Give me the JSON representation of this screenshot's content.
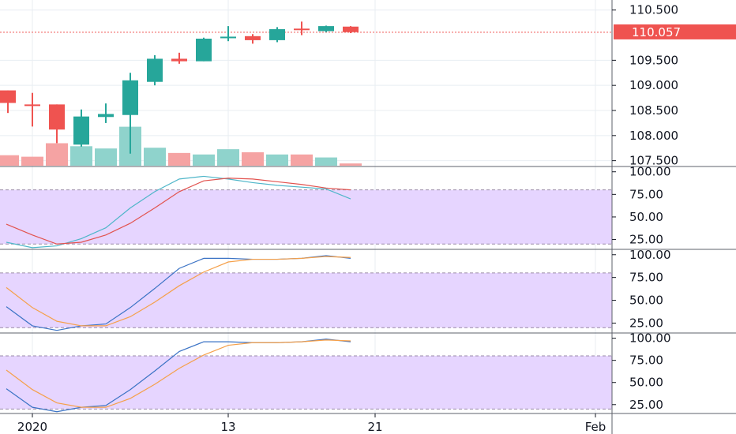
{
  "colors": {
    "up": "#26a69a",
    "down": "#ef5350",
    "vol_up": "#8fd3cc",
    "vol_down": "#f5a3a3",
    "band_fill": "#e6d5ff",
    "band_line": "#9a8aa8",
    "grid": "#e8eef2",
    "divider": "#5d606b",
    "line_k": "#3b73c5",
    "line_d": "#f5a04a",
    "line_k_cyan": "#4fb6c9",
    "line_d_red": "#e2534f",
    "price_line": "#ef5350"
  },
  "last_price": {
    "value": 110.057,
    "label": "110.057"
  },
  "x_axis": {
    "labels": [
      {
        "index": 1,
        "text": "2020"
      },
      {
        "index": 9,
        "text": "13"
      },
      {
        "index": 15,
        "text": "21"
      },
      {
        "index": 24,
        "text": "Feb"
      }
    ]
  },
  "chart_data": [
    {
      "type": "candlestick",
      "ylim": [
        107.4,
        110.7
      ],
      "y_ticks": [
        "107.500",
        "108.000",
        "108.500",
        "109.000",
        "109.500",
        "110.500"
      ],
      "y_tick_values": [
        107.5,
        108.0,
        108.5,
        109.0,
        109.5,
        110.5
      ],
      "candles": [
        {
          "open": 108.9,
          "high": 108.9,
          "low": 108.45,
          "close": 108.65
        },
        {
          "open": 108.62,
          "high": 108.85,
          "low": 108.18,
          "close": 108.6
        },
        {
          "open": 108.62,
          "high": 108.62,
          "low": 107.85,
          "close": 108.12
        },
        {
          "open": 107.82,
          "high": 108.52,
          "low": 107.78,
          "close": 108.38
        },
        {
          "open": 108.37,
          "high": 108.64,
          "low": 108.25,
          "close": 108.43
        },
        {
          "open": 108.41,
          "high": 109.25,
          "low": 107.64,
          "close": 109.1
        },
        {
          "open": 109.07,
          "high": 109.6,
          "low": 109.0,
          "close": 109.53
        },
        {
          "open": 109.53,
          "high": 109.65,
          "low": 109.43,
          "close": 109.48
        },
        {
          "open": 109.48,
          "high": 109.95,
          "low": 109.48,
          "close": 109.93
        },
        {
          "open": 109.96,
          "high": 110.18,
          "low": 109.88,
          "close": 109.97
        },
        {
          "open": 109.98,
          "high": 110.02,
          "low": 109.83,
          "close": 109.9
        },
        {
          "open": 109.9,
          "high": 110.16,
          "low": 109.86,
          "close": 110.12
        },
        {
          "open": 110.13,
          "high": 110.27,
          "low": 110.0,
          "close": 110.11
        },
        {
          "open": 110.08,
          "high": 110.19,
          "low": 110.06,
          "close": 110.18
        },
        {
          "open": 110.17,
          "high": 110.18,
          "low": 110.04,
          "close": 110.06
        }
      ],
      "volume": [
        14,
        12,
        30,
        26,
        23,
        52,
        24,
        17,
        15,
        22,
        18,
        15,
        15,
        11,
        3
      ]
    },
    {
      "type": "line",
      "ylim": [
        15,
        105
      ],
      "y_ticks": [
        "25.00",
        "50.00",
        "75.00",
        "100.00"
      ],
      "y_tick_values": [
        25,
        50,
        75,
        100
      ],
      "band": [
        20,
        80
      ],
      "series": [
        {
          "color_key": "line_k_cyan",
          "values": [
            22,
            16,
            18,
            26,
            38,
            60,
            78,
            92,
            95,
            92,
            88,
            85,
            83,
            81,
            70
          ]
        },
        {
          "color_key": "line_d_red",
          "values": [
            42,
            30,
            20,
            22,
            30,
            43,
            60,
            78,
            90,
            93,
            92,
            89,
            86,
            82,
            80
          ]
        }
      ]
    },
    {
      "type": "line",
      "ylim": [
        15,
        105
      ],
      "y_ticks": [
        "25.00",
        "50.00",
        "75.00",
        "100.00"
      ],
      "y_tick_values": [
        25,
        50,
        75,
        100
      ],
      "band": [
        20,
        80
      ],
      "series": [
        {
          "color_key": "line_k",
          "values": [
            43,
            22,
            17,
            22,
            24,
            42,
            63,
            85,
            96,
            96,
            95,
            95,
            96,
            99,
            96
          ]
        },
        {
          "color_key": "line_d",
          "values": [
            64,
            42,
            27,
            22,
            22,
            32,
            48,
            66,
            81,
            92,
            95,
            95,
            96,
            98,
            97
          ]
        }
      ]
    },
    {
      "type": "line",
      "ylim": [
        15,
        105
      ],
      "y_ticks": [
        "25.00",
        "50.00",
        "75.00",
        "100.00"
      ],
      "y_tick_values": [
        25,
        50,
        75,
        100
      ],
      "band": [
        20,
        80
      ],
      "series": [
        {
          "color_key": "line_k",
          "values": [
            43,
            22,
            17,
            22,
            24,
            42,
            63,
            85,
            96,
            96,
            95,
            95,
            96,
            99,
            96
          ]
        },
        {
          "color_key": "line_d",
          "values": [
            64,
            42,
            27,
            22,
            22,
            32,
            48,
            66,
            81,
            92,
            95,
            95,
            96,
            98,
            97
          ]
        }
      ]
    }
  ]
}
